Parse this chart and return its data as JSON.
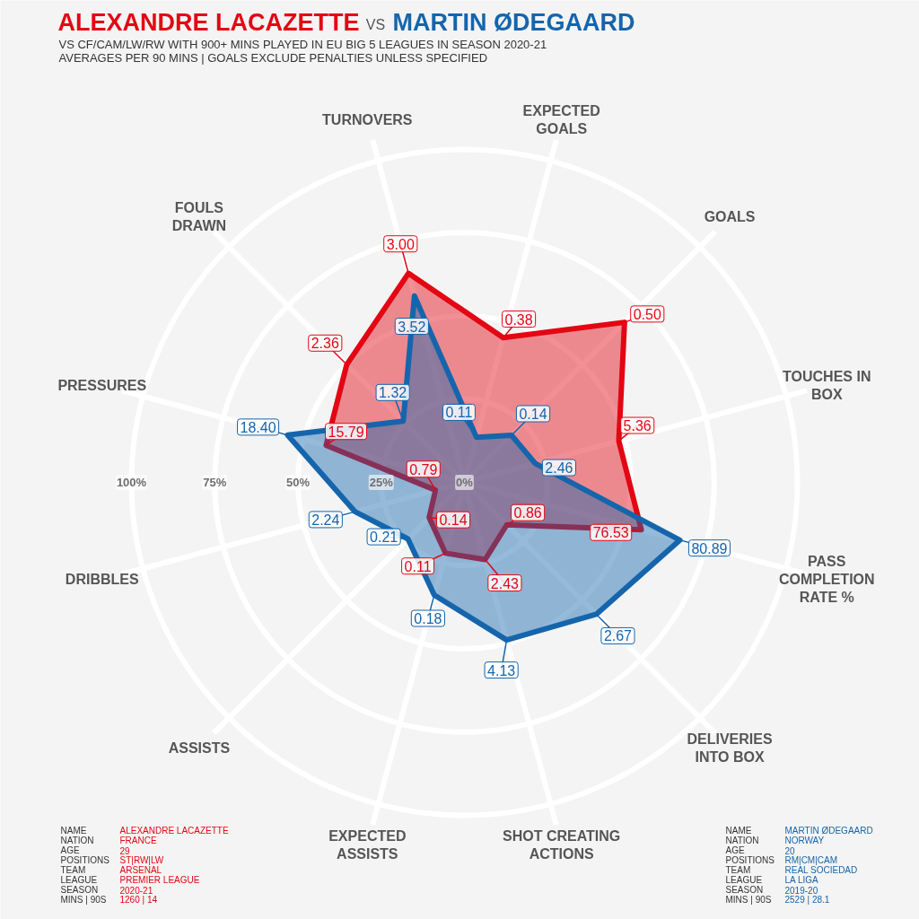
{
  "chart_data": {
    "type": "radar",
    "title": "VS",
    "subtitle": "VS CF/CAM/LW/RW WITH 900+ MINS PLAYED IN EU BIG 5 LEAGUES IN SEASON 2020-21\nAVERAGES PER 90 MINS | GOALS EXCLUDE PENALTIES UNLESS SPECIFIED",
    "categories": [
      "EXPECTED\nGOALS",
      "GOALS",
      "TOUCHES IN\nBOX",
      "PASS\nCOMPLETION\nRATE %",
      "DELIVERIES\nINTO BOX",
      "SHOT CREATING\nACTIONS",
      "EXPECTED\nASSISTS",
      "ASSISTS",
      "DRIBBLES",
      "PRESSURES",
      "FOULS\nDRAWN",
      "TURNOVERS"
    ],
    "series": [
      {
        "name": "ALEXANDRE LACAZETTE",
        "color": "#e30613",
        "values": [
          45,
          68,
          48,
          55,
          18,
          24,
          22,
          15,
          9,
          43,
          50,
          65
        ]
      },
      {
        "name": "MARTIN ØDEGAARD",
        "color": "#1565ac",
        "values": [
          14,
          20,
          22,
          67,
          56,
          49,
          35,
          24,
          34,
          55,
          26,
          58
        ]
      }
    ],
    "ylim": [
      0,
      100
    ],
    "yticks": [
      {
        "value": 0,
        "label": "0%"
      },
      {
        "value": 25,
        "label": "25%"
      },
      {
        "value": 50,
        "label": "50%"
      },
      {
        "value": 75,
        "label": "75%"
      },
      {
        "value": 100,
        "label": "100%"
      }
    ],
    "grid": true,
    "legend": "top left",
    "annotations": [
      {
        "text": "0.38",
        "x": "EXPECTED\nGOALS"
      },
      {
        "text": "0.50",
        "x": "GOALS"
      },
      {
        "text": "5.36",
        "x": "TOUCHES IN\nBOX"
      },
      {
        "text": "76.53",
        "x": "PASS\nCOMPLETION\nRATE %"
      },
      {
        "text": "0.86",
        "x": "DELIVERIES\nINTO BOX"
      },
      {
        "text": "2.43",
        "x": "SHOT CREATING\nACTIONS"
      },
      {
        "text": "0.11",
        "x": "EXPECTED\nASSISTS"
      },
      {
        "text": "0.14",
        "x": "ASSISTS"
      },
      {
        "text": "0.79",
        "x": "DRIBBLES"
      },
      {
        "text": "15.79",
        "x": "PRESSURES"
      },
      {
        "text": "2.36",
        "x": "FOULS\nDRAWN"
      },
      {
        "text": "3.00",
        "x": "TURNOVERS"
      },
      {
        "text": "0.11",
        "x": "EXPECTED\nGOALS"
      },
      {
        "text": "0.14",
        "x": "GOALS"
      },
      {
        "text": "2.46",
        "x": "TOUCHES IN\nBOX"
      },
      {
        "text": "80.89",
        "x": "PASS\nCOMPLETION\nRATE %"
      },
      {
        "text": "2.67",
        "x": "DELIVERIES\nINTO BOX"
      },
      {
        "text": "4.13",
        "x": "SHOT CREATING\nACTIONS"
      },
      {
        "text": "0.18",
        "x": "EXPECTED\nASSISTS"
      },
      {
        "text": "0.21",
        "x": "ASSISTS"
      },
      {
        "text": "2.24",
        "x": "DRIBBLES"
      },
      {
        "text": "18.40",
        "x": "PRESSURES"
      },
      {
        "text": "1.32",
        "x": "FOULS\nDRAWN"
      },
      {
        "text": "3.52",
        "x": "TURNOVERS"
      },
      "NAME",
      "NATION",
      "AGE",
      "POSITIONS",
      "TEAM",
      "LEAGUE",
      "SEASON",
      "MINS | 90S",
      "ALEXANDRE LACAZETTE",
      "FRANCE",
      "29",
      "ST|RW|LW",
      "ARSENAL",
      "PREMIER LEAGUE",
      "2020-21",
      "1260 | 14",
      "NAME",
      "NATION",
      "AGE",
      "POSITIONS",
      "TEAM",
      "LEAGUE",
      "SEASON",
      "MINS | 90S",
      "MARTIN ØDEGAARD",
      "NORWAY",
      "20",
      "RM|CM|CAM",
      "REAL SOCIEDAD",
      "LA LIGA",
      "2019-20",
      "2529 | 28.1"
    ]
  }
}
